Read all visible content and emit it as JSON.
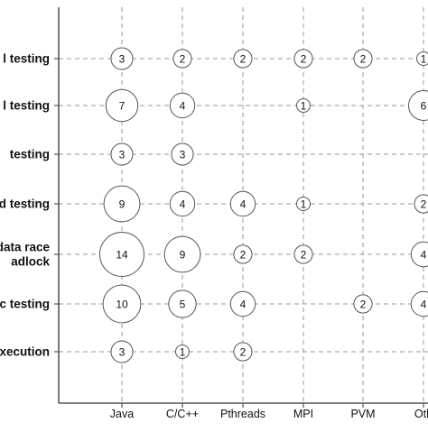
{
  "chart_data": {
    "type": "bubble-matrix",
    "title": "",
    "xlabel": "",
    "ylabel": "",
    "grid": true,
    "x_categories": [
      "Java",
      "C/C++",
      "Pthreads",
      "MPI",
      "PVM",
      "Oth"
    ],
    "y_categories": [
      "l testing",
      "l testing",
      "testing",
      "ed testing",
      "f data race\nadlock",
      "tic testing",
      "xecution"
    ],
    "points": [
      {
        "x": "Java",
        "y_index": 0,
        "value": 3
      },
      {
        "x": "C/C++",
        "y_index": 0,
        "value": 2
      },
      {
        "x": "Pthreads",
        "y_index": 0,
        "value": 2
      },
      {
        "x": "MPI",
        "y_index": 0,
        "value": 2
      },
      {
        "x": "PVM",
        "y_index": 0,
        "value": 2
      },
      {
        "x": "Oth",
        "y_index": 0,
        "value": 1
      },
      {
        "x": "Java",
        "y_index": 1,
        "value": 7
      },
      {
        "x": "C/C++",
        "y_index": 1,
        "value": 4
      },
      {
        "x": "MPI",
        "y_index": 1,
        "value": 1
      },
      {
        "x": "Oth",
        "y_index": 1,
        "value": 6
      },
      {
        "x": "Java",
        "y_index": 2,
        "value": 3
      },
      {
        "x": "C/C++",
        "y_index": 2,
        "value": 3
      },
      {
        "x": "Java",
        "y_index": 3,
        "value": 9
      },
      {
        "x": "C/C++",
        "y_index": 3,
        "value": 4
      },
      {
        "x": "Pthreads",
        "y_index": 3,
        "value": 4
      },
      {
        "x": "MPI",
        "y_index": 3,
        "value": 1
      },
      {
        "x": "Oth",
        "y_index": 3,
        "value": 2
      },
      {
        "x": "Java",
        "y_index": 4,
        "value": 14
      },
      {
        "x": "C/C++",
        "y_index": 4,
        "value": 9
      },
      {
        "x": "Pthreads",
        "y_index": 4,
        "value": 2
      },
      {
        "x": "MPI",
        "y_index": 4,
        "value": 2
      },
      {
        "x": "Oth",
        "y_index": 4,
        "value": 4
      },
      {
        "x": "Java",
        "y_index": 5,
        "value": 10
      },
      {
        "x": "C/C++",
        "y_index": 5,
        "value": 5
      },
      {
        "x": "Pthreads",
        "y_index": 5,
        "value": 4
      },
      {
        "x": "PVM",
        "y_index": 5,
        "value": 2
      },
      {
        "x": "Oth",
        "y_index": 5,
        "value": 4
      },
      {
        "x": "Java",
        "y_index": 6,
        "value": 3
      },
      {
        "x": "C/C++",
        "y_index": 6,
        "value": 1
      },
      {
        "x": "Pthreads",
        "y_index": 6,
        "value": 2
      }
    ]
  },
  "colors": {
    "axis": "#333333",
    "grid": "#9a9a9a",
    "bubble_stroke": "#555555",
    "bubble_fill": "#ffffff",
    "text": "#111111"
  }
}
